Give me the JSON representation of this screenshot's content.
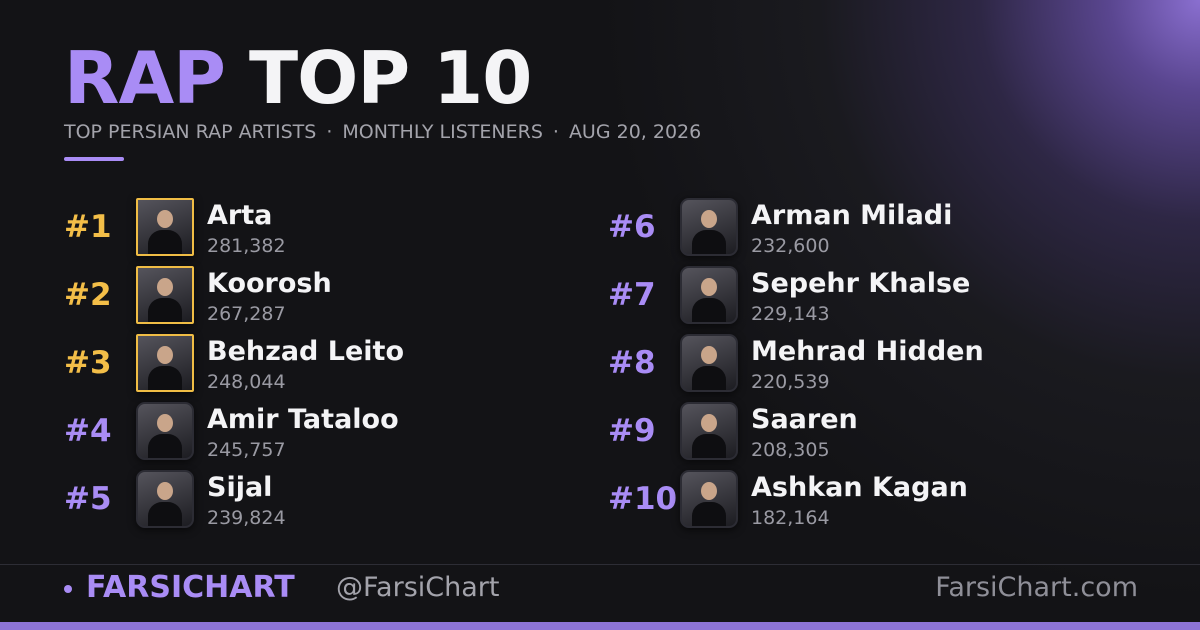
{
  "header": {
    "title_accent": "RAP",
    "title": "TOP 10",
    "subtitle": [
      "TOP PERSIAN RAP ARTISTS",
      "MONTHLY LISTENERS",
      "AUG 20, 2026"
    ],
    "separator": "·"
  },
  "entries": [
    {
      "rank": "#1",
      "name": "Arta",
      "listeners": "281,382"
    },
    {
      "rank": "#2",
      "name": "Koorosh",
      "listeners": "267,287"
    },
    {
      "rank": "#3",
      "name": "Behzad Leito",
      "listeners": "248,044"
    },
    {
      "rank": "#4",
      "name": "Amir Tataloo",
      "listeners": "245,757"
    },
    {
      "rank": "#5",
      "name": "Sijal",
      "listeners": "239,824"
    },
    {
      "rank": "#6",
      "name": "Arman Miladi",
      "listeners": "232,600"
    },
    {
      "rank": "#7",
      "name": "Sepehr Khalse",
      "listeners": "229,143"
    },
    {
      "rank": "#8",
      "name": "Mehrad Hidden",
      "listeners": "220,539"
    },
    {
      "rank": "#9",
      "name": "Saaren",
      "listeners": "208,305"
    },
    {
      "rank": "#10",
      "name": "Ashkan Kagan",
      "listeners": "182,164"
    }
  ],
  "footer": {
    "brand": "FARSICHART",
    "handle": "@FarsiChart",
    "site": "FarsiChart.com"
  }
}
